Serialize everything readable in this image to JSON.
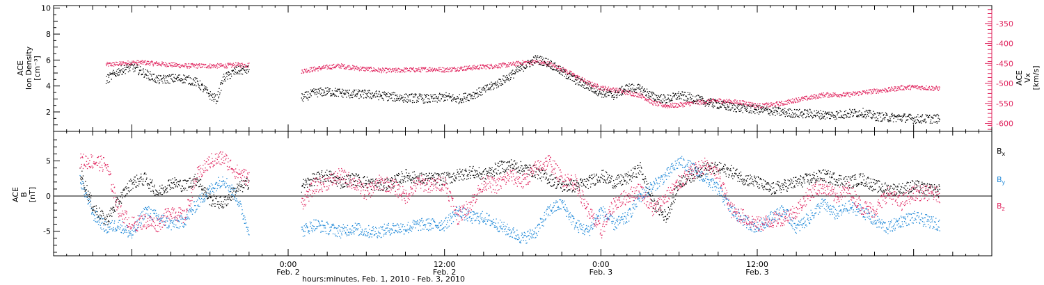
{
  "figure": {
    "x_axis_title": "hours:minutes, Feb.  1, 2010 - Feb.  3, 2010"
  },
  "chart_data": [
    {
      "type": "scatter",
      "panel": "top",
      "ylabel_left": [
        "ACE",
        "Ion Density",
        "[cm⁻³]"
      ],
      "ylabel_right": [
        "ACE",
        "Vx",
        "[km/s]"
      ],
      "left_axis": {
        "ylim": [
          0.5,
          10.2
        ],
        "ticks": [
          2,
          4,
          6,
          8,
          10
        ],
        "tick_labels": [
          "2",
          "4",
          "6",
          "8",
          "10"
        ]
      },
      "right_axis": {
        "ylim": [
          -620,
          -305
        ],
        "ticks": [
          -350,
          -400,
          -450,
          -500,
          -550,
          -600
        ],
        "tick_labels": [
          "-350",
          "-400",
          "-450",
          "-500",
          "-550",
          "-600"
        ],
        "color": "#e0245e"
      },
      "xlim_hours": [
        -18,
        54
      ],
      "grid": false,
      "series": [
        {
          "axis": "left",
          "color": "#000000",
          "segments": [
            {
              "x": [
                -14,
                -13,
                -12,
                -11,
                -10,
                -9,
                -8,
                -7,
                -6,
                -5.5,
                -5,
                -4,
                -3
              ],
              "y": [
                4.5,
                5.2,
                5.5,
                5.0,
                4.5,
                4.6,
                4.6,
                4.3,
                3.3,
                3.0,
                4.6,
                5.2,
                5.3
              ]
            },
            {
              "x": [
                1,
                2,
                3,
                4,
                5,
                6,
                7,
                8,
                9,
                10,
                11,
                12,
                13,
                14,
                15,
                16,
                17,
                18,
                19,
                20,
                21,
                22,
                23,
                24,
                25,
                26,
                27,
                28,
                29,
                30,
                31,
                32,
                33,
                34,
                35,
                36,
                37,
                38,
                39,
                40,
                41,
                42,
                43,
                44,
                45,
                46,
                47,
                48,
                49,
                50
              ],
              "y": [
                3.1,
                3.5,
                3.6,
                3.5,
                3.4,
                3.4,
                3.3,
                3.2,
                3.1,
                3.1,
                3.0,
                3.2,
                3.0,
                3.3,
                3.7,
                4.2,
                4.8,
                5.5,
                6.1,
                5.8,
                5.1,
                4.5,
                4.0,
                3.5,
                3.3,
                3.9,
                3.8,
                3.2,
                3.0,
                3.3,
                3.1,
                2.8,
                2.6,
                2.4,
                2.3,
                2.2,
                2.1,
                2.0,
                1.9,
                1.9,
                1.8,
                1.8,
                1.9,
                2.0,
                1.7,
                1.6,
                1.6,
                1.5,
                1.5,
                1.5
              ]
            }
          ]
        },
        {
          "axis": "right",
          "color": "#e0245e",
          "segments": [
            {
              "x": [
                -14,
                -13,
                -12,
                -11,
                -10,
                -9,
                -8,
                -7,
                -6,
                -5,
                -4,
                -3
              ],
              "y": [
                -452,
                -450,
                -447,
                -447,
                -450,
                -452,
                -455,
                -455,
                -455,
                -455,
                -453,
                -453
              ]
            },
            {
              "x": [
                1,
                2,
                3,
                4,
                5,
                6,
                7,
                8,
                9,
                10,
                11,
                12,
                13,
                14,
                15,
                16,
                17,
                18,
                19,
                20,
                21,
                22,
                23,
                24,
                25,
                26,
                27,
                28,
                29,
                30,
                31,
                32,
                33,
                34,
                35,
                36,
                37,
                38,
                39,
                40,
                41,
                42,
                43,
                44,
                45,
                46,
                47,
                48,
                49,
                50
              ],
              "y": [
                -468,
                -463,
                -458,
                -455,
                -460,
                -463,
                -466,
                -467,
                -465,
                -465,
                -463,
                -465,
                -462,
                -460,
                -457,
                -455,
                -452,
                -447,
                -445,
                -450,
                -463,
                -480,
                -498,
                -510,
                -515,
                -522,
                -528,
                -548,
                -555,
                -553,
                -548,
                -545,
                -542,
                -545,
                -548,
                -555,
                -553,
                -548,
                -540,
                -535,
                -528,
                -527,
                -527,
                -522,
                -518,
                -515,
                -510,
                -508,
                -510,
                -512
              ]
            }
          ]
        }
      ]
    },
    {
      "type": "scatter",
      "panel": "bottom",
      "ylabel": [
        "ACE",
        "B",
        "[nT]"
      ],
      "ylim": [
        -8.5,
        9.2
      ],
      "ticks": [
        -5,
        0,
        5
      ],
      "tick_labels": [
        "-5",
        "0",
        "5"
      ],
      "xlim_hours": [
        -18,
        54
      ],
      "grid": false,
      "zero_line": true,
      "x_ticks": [
        0,
        12,
        24,
        36
      ],
      "x_tick_labels": [
        "0:00",
        "12:00",
        "0:00",
        "12:00"
      ],
      "x_tick_dates": [
        "Feb. 2",
        "Feb. 2",
        "Feb. 3",
        "Feb. 3"
      ],
      "series": [
        {
          "legend": "Bx",
          "color": "#000000",
          "segments": [
            {
              "x": [
                -16,
                -15,
                -14,
                -13,
                -12,
                -11,
                -10,
                -9,
                -8,
                -7,
                -6,
                -5,
                -4,
                -3
              ],
              "y": [
                3.5,
                -1.5,
                -3.5,
                -0.5,
                2.0,
                2.5,
                0.5,
                2.0,
                1.5,
                2.5,
                -0.5,
                -1.0,
                1.0,
                2.0
              ]
            },
            {
              "x": [
                1,
                2,
                3,
                4,
                5,
                6,
                7,
                8,
                9,
                10,
                11,
                12,
                13,
                14,
                15,
                16,
                17,
                18,
                19,
                20,
                21,
                22,
                23,
                24,
                25,
                26,
                27,
                28,
                29,
                30,
                31,
                32,
                33,
                34,
                35,
                36,
                37,
                38,
                39,
                40,
                41,
                42,
                43,
                44,
                45,
                46,
                47,
                48,
                49,
                50
              ],
              "y": [
                1.5,
                2.5,
                3.0,
                2.0,
                2.5,
                2.0,
                1.5,
                2.0,
                3.0,
                2.5,
                2.5,
                2.5,
                3.0,
                3.5,
                3.0,
                4.0,
                4.5,
                4.0,
                3.5,
                2.5,
                1.5,
                1.5,
                2.0,
                3.0,
                2.0,
                2.5,
                4.0,
                -1.0,
                -3.0,
                2.0,
                3.0,
                4.0,
                4.0,
                3.5,
                2.5,
                2.0,
                1.0,
                1.5,
                2.0,
                2.5,
                3.0,
                2.5,
                2.0,
                2.5,
                1.5,
                1.0,
                1.0,
                1.5,
                1.0,
                0.8
              ]
            }
          ]
        },
        {
          "legend": "By",
          "color": "#1e88d8",
          "segments": [
            {
              "x": [
                -16,
                -15,
                -14,
                -13,
                -12,
                -11,
                -10,
                -9,
                -8,
                -7,
                -6,
                -5,
                -4,
                -3
              ],
              "y": [
                2.5,
                -2.5,
                -4.5,
                -4.0,
                -5.5,
                -2.0,
                -3.0,
                -4.0,
                -3.5,
                -1.0,
                1.0,
                2.5,
                0.0,
                -5.0
              ]
            },
            {
              "x": [
                1,
                2,
                3,
                4,
                5,
                6,
                7,
                8,
                9,
                10,
                11,
                12,
                13,
                14,
                15,
                16,
                17,
                18,
                19,
                20,
                21,
                22,
                23,
                24,
                25,
                26,
                27,
                28,
                29,
                30,
                31,
                32,
                33,
                34,
                35,
                36,
                37,
                38,
                39,
                40,
                41,
                42,
                43,
                44,
                45,
                46,
                47,
                48,
                49,
                50
              ],
              "y": [
                -5.0,
                -4.0,
                -4.5,
                -5.0,
                -4.5,
                -5.0,
                -5.0,
                -4.5,
                -4.5,
                -4.0,
                -4.0,
                -4.0,
                -2.0,
                -3.0,
                -3.0,
                -4.0,
                -5.0,
                -6.0,
                -5.0,
                -2.0,
                -1.0,
                -4.0,
                -5.0,
                -2.0,
                -4.0,
                -3.0,
                0.0,
                1.5,
                3.0,
                5.0,
                4.0,
                2.5,
                1.0,
                -2.0,
                -3.5,
                -4.5,
                -3.0,
                -2.0,
                -4.5,
                -3.0,
                -1.0,
                -2.5,
                -1.5,
                -2.0,
                -3.5,
                -4.5,
                -3.5,
                -3.0,
                -3.5,
                -4.0
              ]
            }
          ]
        },
        {
          "legend": "Bz",
          "color": "#e0245e",
          "segments": [
            {
              "x": [
                -16,
                -15,
                -14,
                -13,
                -12,
                -11,
                -10,
                -9,
                -8,
                -7,
                -6,
                -5,
                -4,
                -3
              ],
              "y": [
                5.0,
                5.0,
                4.5,
                -2.0,
                -4.0,
                -3.5,
                -4.0,
                -2.0,
                -3.0,
                3.0,
                5.0,
                5.5,
                3.5,
                2.5
              ]
            },
            {
              "x": [
                1,
                2,
                3,
                4,
                5,
                6,
                7,
                8,
                9,
                10,
                11,
                12,
                13,
                14,
                15,
                16,
                17,
                18,
                19,
                20,
                21,
                22,
                23,
                24,
                25,
                26,
                27,
                28,
                29,
                30,
                31,
                32,
                33,
                34,
                35,
                36,
                37,
                38,
                39,
                40,
                41,
                42,
                43,
                44,
                45,
                46,
                47,
                48,
                49,
                50
              ],
              "y": [
                -1.0,
                1.5,
                2.0,
                3.0,
                2.0,
                0.5,
                2.0,
                1.5,
                0.0,
                2.0,
                1.5,
                2.0,
                -3.0,
                -1.0,
                2.0,
                1.5,
                3.0,
                2.0,
                4.0,
                5.0,
                2.5,
                2.0,
                -2.0,
                -5.0,
                -1.0,
                0.0,
                1.0,
                -2.0,
                0.0,
                2.0,
                3.5,
                4.5,
                3.0,
                -2.0,
                -3.0,
                -4.0,
                -3.5,
                -3.0,
                -2.0,
                0.5,
                1.5,
                0.0,
                1.0,
                -1.5,
                -2.0,
                0.5,
                -1.0,
                0.5,
                0.5,
                0.2
              ]
            }
          ]
        }
      ]
    }
  ]
}
